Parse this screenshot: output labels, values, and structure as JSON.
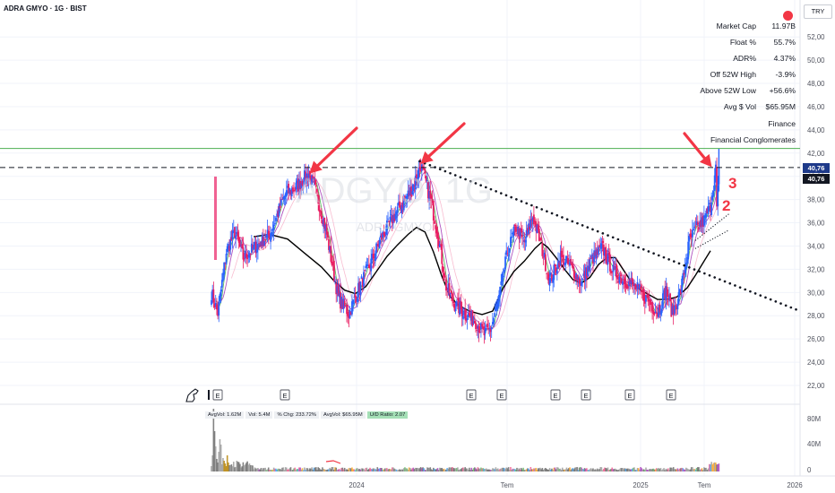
{
  "header": {
    "title": "ADRA GMYO · 1G · BIST"
  },
  "currency_button": {
    "label": "TRY"
  },
  "stats": [
    {
      "label": "Market Cap",
      "value": "11.97B"
    },
    {
      "label": "Float %",
      "value": "55.7%"
    },
    {
      "label": "ADR%",
      "value": "4.37%"
    },
    {
      "label": "Off 52W High",
      "value": "-3.9%"
    },
    {
      "label": "Above 52W Low",
      "value": "+56.6%"
    },
    {
      "label": "Avg $ Vol",
      "value": "$65.95M"
    },
    {
      "label": "Finance",
      "value": ""
    },
    {
      "label": "Financial Conglomerates",
      "value": ""
    }
  ],
  "price_tags": {
    "upper": "40,76",
    "lower": "40,76"
  },
  "volume_stats": {
    "avg_vol": "AvgVol: 1.62M",
    "vol": "Vol: 5.4M",
    "pct_chg": "% Chg: 233.72%",
    "avg_dollar_vol": "AvgVol: $65.95M",
    "ud_ratio": "U/D Ratio: 2.07"
  },
  "annotations": {
    "num2": "2",
    "num3": "3"
  },
  "watermark": {
    "symbol": "ADGYO, 1G",
    "name": "ADRA GMYO"
  },
  "earnings_marker": "E",
  "colors": {
    "bull": "#2962ff",
    "bear": "#e91e63",
    "arrow": "#f23645",
    "ma_black": "#000000",
    "ma_green": "#4caf50",
    "ma_purple": "#9c27b0",
    "resistance_green": "#4caf50",
    "price_tag_bg": "#1e3a8a"
  },
  "chart_data": {
    "type": "candlestick",
    "y_axis": {
      "ticks": [
        "52,00",
        "50,00",
        "48,00",
        "46,00",
        "44,00",
        "42,00",
        "40,00",
        "38,00",
        "36,00",
        "34,00",
        "32,00",
        "30,00",
        "28,00",
        "26,00",
        "24,00",
        "22,00"
      ],
      "range": [
        20.9,
        53.0
      ]
    },
    "x_axis": {
      "ticks": [
        "2024",
        "Tem",
        "2025",
        "Tem",
        "2026"
      ]
    },
    "volume_axis": {
      "ticks": [
        "80M",
        "40M",
        "0"
      ]
    },
    "close_path_anchors": [
      [
        0,
        30.0
      ],
      [
        6,
        28.2
      ],
      [
        14,
        33.5
      ],
      [
        22,
        35.2
      ],
      [
        30,
        33.0
      ],
      [
        40,
        33.8
      ],
      [
        55,
        35.0
      ],
      [
        70,
        38.5
      ],
      [
        82,
        39.2
      ],
      [
        92,
        40.3
      ],
      [
        100,
        38.3
      ],
      [
        108,
        35.5
      ],
      [
        114,
        32.5
      ],
      [
        120,
        29.5
      ],
      [
        130,
        28.2
      ],
      [
        140,
        30.5
      ],
      [
        150,
        32.4
      ],
      [
        160,
        34.6
      ],
      [
        170,
        36.2
      ],
      [
        180,
        37.6
      ],
      [
        190,
        39.0
      ],
      [
        198,
        41.0
      ],
      [
        206,
        38.4
      ],
      [
        214,
        35.2
      ],
      [
        222,
        30.5
      ],
      [
        230,
        29.0
      ],
      [
        240,
        28.2
      ],
      [
        250,
        27.5
      ],
      [
        258,
        26.4
      ],
      [
        264,
        26.8
      ],
      [
        272,
        29.5
      ],
      [
        280,
        33.5
      ],
      [
        288,
        35.6
      ],
      [
        296,
        34.3
      ],
      [
        304,
        36.6
      ],
      [
        312,
        34.0
      ],
      [
        320,
        31.0
      ],
      [
        330,
        33.0
      ],
      [
        340,
        32.2
      ],
      [
        350,
        30.8
      ],
      [
        360,
        32.9
      ],
      [
        370,
        33.8
      ],
      [
        380,
        31.8
      ],
      [
        392,
        31.0
      ],
      [
        404,
        30.2
      ],
      [
        414,
        29.2
      ],
      [
        422,
        28.3
      ],
      [
        430,
        30.2
      ],
      [
        436,
        28.2
      ],
      [
        444,
        30.2
      ],
      [
        452,
        34.4
      ],
      [
        458,
        35.4
      ],
      [
        466,
        36.2
      ],
      [
        472,
        37.5
      ],
      [
        477,
        40.6
      ],
      [
        480,
        40.8
      ]
    ],
    "moving_average_black_anchors": [
      [
        40,
        34.8
      ],
      [
        55,
        35.0
      ],
      [
        72,
        34.6
      ],
      [
        88,
        33.4
      ],
      [
        104,
        32.2
      ],
      [
        116,
        31.0
      ],
      [
        126,
        30.2
      ],
      [
        136,
        29.9
      ],
      [
        146,
        30.5
      ],
      [
        156,
        31.8
      ],
      [
        166,
        33.1
      ],
      [
        176,
        34.1
      ],
      [
        186,
        35.0
      ],
      [
        194,
        35.6
      ],
      [
        202,
        35.2
      ],
      [
        210,
        33.5
      ],
      [
        218,
        31.4
      ],
      [
        226,
        29.6
      ],
      [
        234,
        28.9
      ],
      [
        244,
        28.4
      ],
      [
        256,
        28.1
      ],
      [
        266,
        28.4
      ],
      [
        276,
        30.4
      ],
      [
        286,
        31.8
      ],
      [
        296,
        32.7
      ],
      [
        306,
        33.8
      ],
      [
        312,
        34.3
      ],
      [
        318,
        33.9
      ],
      [
        326,
        33.0
      ],
      [
        334,
        32.0
      ],
      [
        342,
        31.1
      ],
      [
        350,
        30.8
      ],
      [
        358,
        31.3
      ],
      [
        366,
        32.4
      ],
      [
        374,
        33.0
      ],
      [
        382,
        33.0
      ],
      [
        390,
        31.9
      ],
      [
        398,
        30.8
      ],
      [
        406,
        30.2
      ],
      [
        414,
        29.8
      ],
      [
        422,
        29.4
      ],
      [
        430,
        29.4
      ],
      [
        440,
        29.6
      ],
      [
        450,
        30.4
      ],
      [
        458,
        31.5
      ],
      [
        466,
        32.7
      ],
      [
        472,
        33.6
      ]
    ],
    "annotations": [
      {
        "type": "arrow",
        "near_date_index": 92,
        "price": 40.4
      },
      {
        "type": "arrow",
        "near_date_index": 197,
        "price": 41.3
      },
      {
        "type": "arrow",
        "near_date_index": 475,
        "price": 40.8
      },
      {
        "type": "horizontal_line",
        "price": 40.76,
        "style": "dashed"
      },
      {
        "type": "horizontal_line",
        "price": 42.4,
        "style": "solid"
      },
      {
        "type": "trendline",
        "from": [
          197,
          41.3
        ],
        "to": [
          580,
          28.4
        ],
        "style": "dotted"
      },
      {
        "type": "label",
        "text": "2",
        "price": 35.7
      },
      {
        "type": "label",
        "text": "3",
        "price": 39.2
      }
    ],
    "legend_placement": "top-right",
    "grid": true
  }
}
